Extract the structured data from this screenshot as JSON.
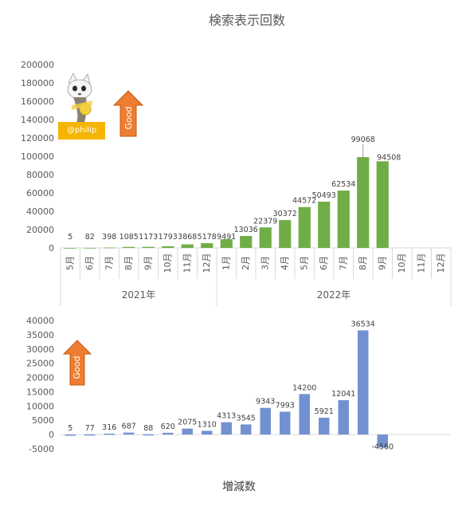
{
  "chart_data": [
    {
      "type": "bar",
      "title": "検索表示回数",
      "categories": [
        "5月",
        "6月",
        "7月",
        "8月",
        "9月",
        "10月",
        "11月",
        "12月",
        "1月",
        "2月",
        "3月",
        "4月",
        "5月",
        "6月",
        "7月",
        "8月",
        "9月",
        "10月",
        "11月",
        "12月"
      ],
      "groups": [
        {
          "label": "2021年",
          "count": 8
        },
        {
          "label": "2022年",
          "count": 12
        }
      ],
      "series": [
        {
          "values": [
            5,
            82,
            398,
            1085,
            1173,
            1793,
            3868,
            5178,
            9491,
            13036,
            22379,
            30372,
            44572,
            50493,
            62534,
            99068,
            94508,
            null,
            null,
            null
          ],
          "color": "#70ad47"
        }
      ],
      "ylim": [
        0,
        200000
      ],
      "yticks": [
        0,
        20000,
        40000,
        60000,
        80000,
        100000,
        120000,
        140000,
        160000,
        180000,
        200000
      ],
      "grid": false,
      "annotation": {
        "text": "Good",
        "color": "#ed7d31"
      },
      "badge": {
        "text": "@philip",
        "color": "#f5b400"
      }
    },
    {
      "type": "bar",
      "title": "増減数",
      "series": [
        {
          "values": [
            5,
            77,
            316,
            687,
            88,
            620,
            2075,
            1310,
            4313,
            3545,
            9343,
            7993,
            14200,
            5921,
            12041,
            36534,
            -4560
          ],
          "color": "#7291d0"
        }
      ],
      "ylim": [
        -5000,
        40000
      ],
      "yticks": [
        -5000,
        0,
        5000,
        10000,
        15000,
        20000,
        25000,
        30000,
        35000,
        40000
      ],
      "grid": false,
      "annotation": {
        "text": "Good",
        "color": "#ed7d31"
      }
    }
  ]
}
